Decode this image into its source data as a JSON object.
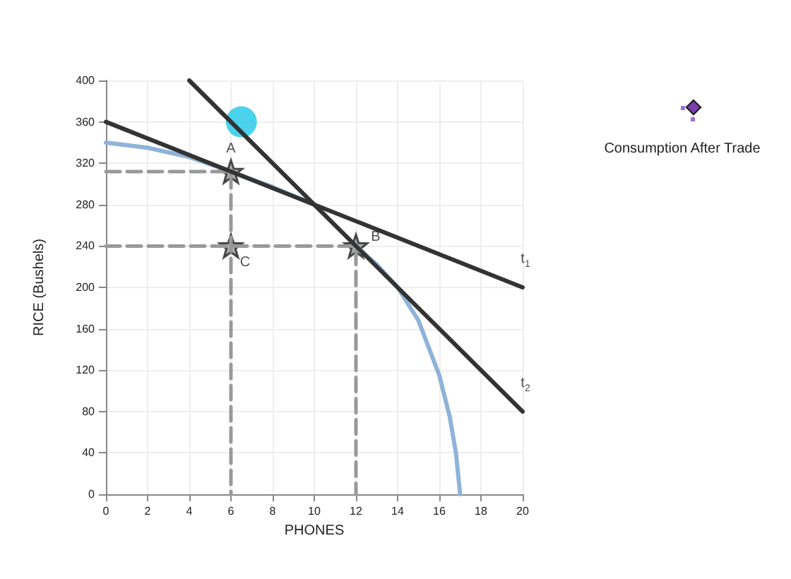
{
  "chart_data": {
    "type": "line",
    "xlabel": "PHONES",
    "ylabel": "RICE (Bushels)",
    "xlim": [
      0,
      20
    ],
    "xticks": [
      0,
      2,
      4,
      6,
      8,
      10,
      12,
      14,
      16,
      18,
      20
    ],
    "ylim": [
      0,
      400
    ],
    "yticks": [
      0,
      40,
      80,
      120,
      160,
      200,
      240,
      280,
      320,
      360,
      400
    ],
    "grid": true,
    "marker": "none",
    "series": [
      {
        "color": "#8fb3d9",
        "x": [
          0,
          2,
          4,
          6,
          8,
          10,
          12,
          13,
          14,
          15,
          16,
          16.5,
          16.8,
          17
        ],
        "values": [
          340,
          335,
          326,
          312,
          297,
          280,
          240,
          222,
          200,
          168,
          115,
          75,
          40,
          0
        ]
      },
      {
        "color": "#999999",
        "line_style": "dashed",
        "x": [
          0,
          6,
          6
        ],
        "values": [
          312,
          312,
          0
        ]
      },
      {
        "color": "#999999",
        "line_style": "dashed",
        "x": [
          0,
          12,
          12
        ],
        "values": [
          240,
          240,
          0
        ]
      },
      {
        "color": "#333333",
        "x": [
          0,
          20
        ],
        "values": [
          360,
          200
        ]
      },
      {
        "color": "#333333",
        "x": [
          4,
          20
        ],
        "values": [
          400,
          80
        ]
      },
      {
        "type": "scatter",
        "color": "#999999",
        "marker": "star",
        "x": [
          6,
          12,
          6
        ],
        "values": [
          312,
          240,
          240
        ]
      },
      {
        "type": "scatter",
        "color": "#1ec8e8",
        "marker": "circle",
        "x": [
          6.5
        ],
        "values": [
          360
        ]
      }
    ],
    "annotations": [
      {
        "text": "A",
        "x": 6,
        "y": 312
      },
      {
        "text": "B",
        "x": 12,
        "y": 240
      },
      {
        "text": "C",
        "x": 6,
        "y": 240
      },
      {
        "text": "t$_{1}$",
        "x": 20,
        "y": 200
      },
      {
        "text": "t$_{2}$",
        "x": 20,
        "y": 80
      },
      "Consumption After Trade"
    ]
  }
}
